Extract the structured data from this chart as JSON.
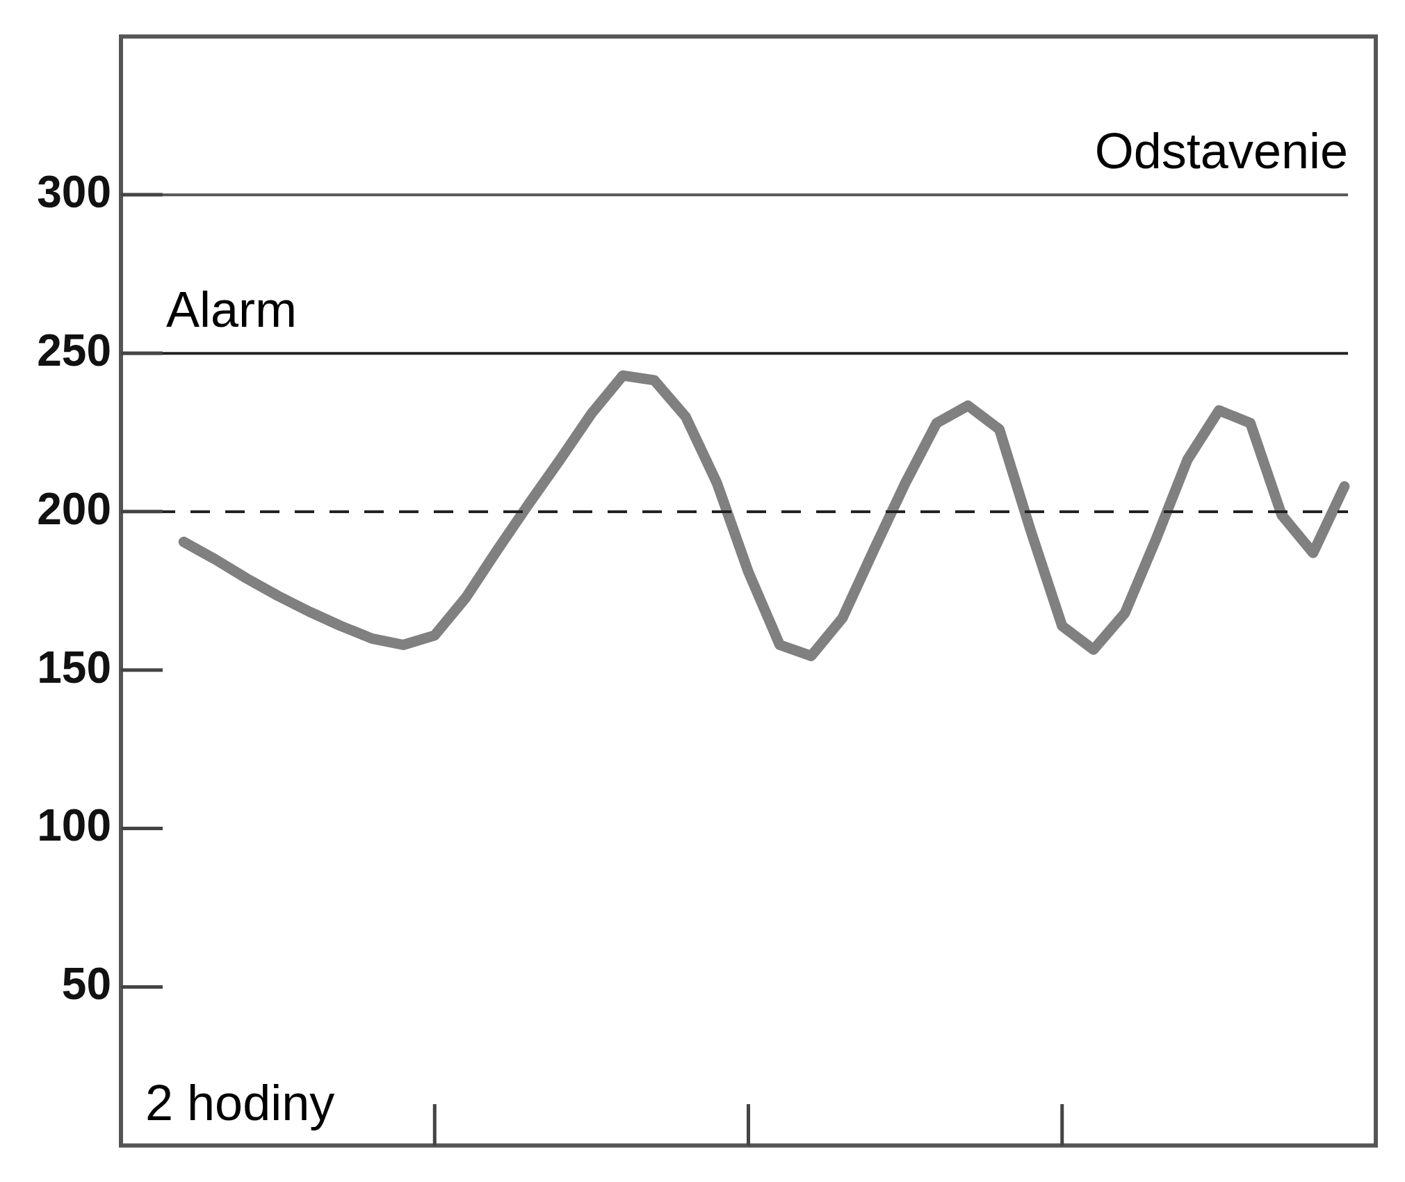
{
  "chart_data": {
    "type": "line",
    "annotations": [
      "2 hodiny"
    ],
    "categories": [
      null,
      null,
      null,
      null,
      null,
      null,
      null,
      null,
      null,
      null,
      null,
      null,
      null,
      null,
      null,
      null,
      null,
      null,
      null,
      null,
      null,
      null,
      null,
      null,
      null,
      null,
      null,
      null,
      null,
      null,
      null,
      null,
      null,
      null,
      null,
      null,
      null,
      null,
      null,
      null,
      null
    ],
    "series": [
      {
        "color": "#808080",
        "values": [
          null,
          null,
          190.5,
          185,
          179,
          173.5,
          168.5,
          164,
          160,
          158,
          161,
          173,
          188,
          202.5,
          216.5,
          231,
          243,
          241.5,
          230,
          209,
          181,
          158,
          154.5,
          166.5,
          188,
          209,
          228,
          233.5,
          226,
          194,
          164,
          156.5,
          168,
          191.5,
          216.5,
          232,
          228,
          199,
          187,
          208,
          null
        ]
      }
    ],
    "ylim": [
      0,
      350
    ],
    "yticks": [
      50,
      100,
      150,
      200,
      250,
      300
    ],
    "ref_lines": [
      {
        "axis": "y",
        "value": 300,
        "label": "Odstavenie",
        "color": "#555555",
        "line_style": "solid"
      },
      {
        "axis": "y",
        "value": 250,
        "label": "Alarm",
        "color": "#222222",
        "line_style": "solid"
      },
      {
        "axis": "y",
        "value": 200,
        "color": "#222222",
        "line_style": "dashed"
      }
    ],
    "tick_labels": "y",
    "grid": false,
    "legend": false,
    "marker": "none",
    "line_style": "solid"
  }
}
